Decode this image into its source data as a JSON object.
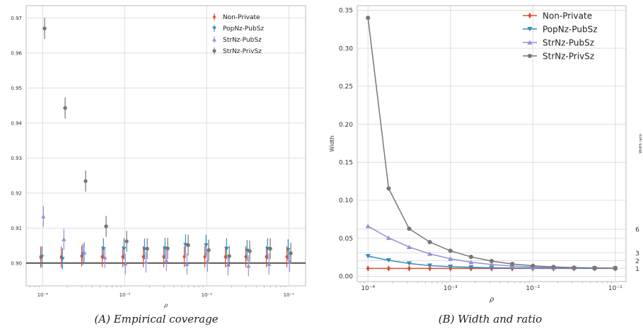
{
  "chart_data": [
    {
      "type": "scatter",
      "caption": "(A) Empirical coverage",
      "xlabel": "ρ",
      "ylabel": "",
      "xscale": "log",
      "xlim": [
        6.3e-05,
        0.16
      ],
      "ylim": [
        0.8935,
        0.9735
      ],
      "x_tick_labels": [
        "10⁻⁴",
        "10⁻³",
        "10⁻²",
        "10⁻¹"
      ],
      "y_tick_labels": [
        "0.90",
        "0.91",
        "0.92",
        "0.93",
        "0.94",
        "0.95",
        "0.96",
        "0.97"
      ],
      "y_ticks": [
        0.9,
        0.91,
        0.92,
        0.93,
        0.94,
        0.95,
        0.96,
        0.97
      ],
      "reference_line": 0.9,
      "grid": true,
      "legend_position": "top-right",
      "rho": [
        0.0001,
        0.000178,
        0.000316,
        0.000562,
        0.001,
        0.00178,
        0.00316,
        0.00562,
        0.01,
        0.0178,
        0.0316,
        0.0562,
        0.1
      ],
      "series": [
        {
          "name": "Non-Private",
          "marker": "diamond",
          "color": "#e24a33",
          "offset": -0.014,
          "values": [
            0.9017,
            0.9017,
            0.902,
            0.9018,
            0.9018,
            0.9018,
            0.9018,
            0.9018,
            0.9018,
            0.9018,
            0.9018,
            0.9018,
            0.9018
          ],
          "err": [
            0.003,
            0.003,
            0.003,
            0.003,
            0.003,
            0.003,
            0.003,
            0.003,
            0.003,
            0.003,
            0.003,
            0.003,
            0.003
          ]
        },
        {
          "name": "PopNz-PubSz",
          "marker": "triangle-down",
          "color": "#348abd",
          "offset": -0.005,
          "values": [
            0.9018,
            0.9012,
            0.9025,
            0.9041,
            0.9041,
            0.904,
            0.9042,
            0.9052,
            0.9051,
            0.9041,
            0.9036,
            0.9041,
            0.9038
          ],
          "err": [
            0.003,
            0.003,
            0.003,
            0.003,
            0.003,
            0.003,
            0.003,
            0.003,
            0.003,
            0.003,
            0.003,
            0.003,
            0.003
          ]
        },
        {
          "name": "StrNz-PubSz",
          "marker": "triangle-up",
          "color": "#988ed5",
          "offset": 0.005,
          "values": [
            0.9133,
            0.9068,
            0.903,
            0.9016,
            0.8998,
            0.9003,
            0.9008,
            0.8997,
            0.9005,
            0.8995,
            0.8992,
            0.8997,
            0.9005
          ],
          "err": [
            0.003,
            0.003,
            0.003,
            0.003,
            0.003,
            0.003,
            0.003,
            0.003,
            0.003,
            0.003,
            0.003,
            0.003,
            0.003
          ]
        },
        {
          "name": "StrNz-PrivSz",
          "marker": "circle",
          "color": "#777777",
          "offset": 0.014,
          "values": [
            0.967,
            0.9443,
            0.9234,
            0.9105,
            0.9062,
            0.9041,
            0.9042,
            0.9051,
            0.9037,
            0.902,
            0.9034,
            0.9041,
            0.9028
          ],
          "err": [
            0.003,
            0.003,
            0.003,
            0.003,
            0.003,
            0.003,
            0.003,
            0.003,
            0.003,
            0.003,
            0.003,
            0.003,
            0.003
          ]
        }
      ]
    },
    {
      "type": "line",
      "caption": "(B) Width and ratio",
      "xlabel": "ρ",
      "ylabel": "Width",
      "secondary_ylabel": "Width ratio",
      "xscale": "log",
      "xlim": [
        7.4e-05,
        0.135
      ],
      "ylim": [
        -0.007,
        0.356
      ],
      "x_tick_labels": [
        "10⁻⁴",
        "10⁻³",
        "10⁻²",
        "10⁻¹"
      ],
      "y_tick_labels": [
        "0.00",
        "0.05",
        "0.10",
        "0.15",
        "0.20",
        "0.25",
        "0.30",
        "0.35"
      ],
      "y_ticks": [
        0,
        0.05,
        0.1,
        0.15,
        0.2,
        0.25,
        0.3,
        0.35
      ],
      "secondary_y_ticks": {
        "labels": [
          "1",
          "2",
          "3",
          "6"
        ],
        "at_width": [
          0.0103,
          0.0206,
          0.0309,
          0.0618
        ]
      },
      "grid": true,
      "legend_position": "top-right",
      "x": [
        0.0001,
        0.000178,
        0.000316,
        0.000562,
        0.001,
        0.00178,
        0.00316,
        0.00562,
        0.01,
        0.0178,
        0.0316,
        0.0562,
        0.1
      ],
      "series": [
        {
          "name": "Non-Private",
          "marker": "diamond",
          "color": "#e24a33",
          "values": [
            0.0103,
            0.0103,
            0.0103,
            0.0103,
            0.0103,
            0.0103,
            0.0103,
            0.0103,
            0.0103,
            0.0103,
            0.0103,
            0.0103,
            0.0103
          ]
        },
        {
          "name": "PopNz-PubSz",
          "marker": "triangle-down",
          "color": "#348abd",
          "values": [
            0.0265,
            0.021,
            0.0168,
            0.014,
            0.0126,
            0.0118,
            0.0112,
            0.0109,
            0.0107,
            0.0106,
            0.0105,
            0.0104,
            0.0104
          ]
        },
        {
          "name": "StrNz-PubSz",
          "marker": "triangle-up",
          "color": "#988ed5",
          "values": [
            0.066,
            0.0505,
            0.0385,
            0.0295,
            0.023,
            0.0185,
            0.0155,
            0.0135,
            0.0122,
            0.0115,
            0.0111,
            0.0108,
            0.0106
          ]
        },
        {
          "name": "StrNz-PrivSz",
          "marker": "circle",
          "color": "#777777",
          "values": [
            0.34,
            0.1155,
            0.0625,
            0.045,
            0.0335,
            0.0255,
            0.02,
            0.0162,
            0.0138,
            0.0123,
            0.0114,
            0.011,
            0.0107
          ]
        }
      ]
    }
  ]
}
